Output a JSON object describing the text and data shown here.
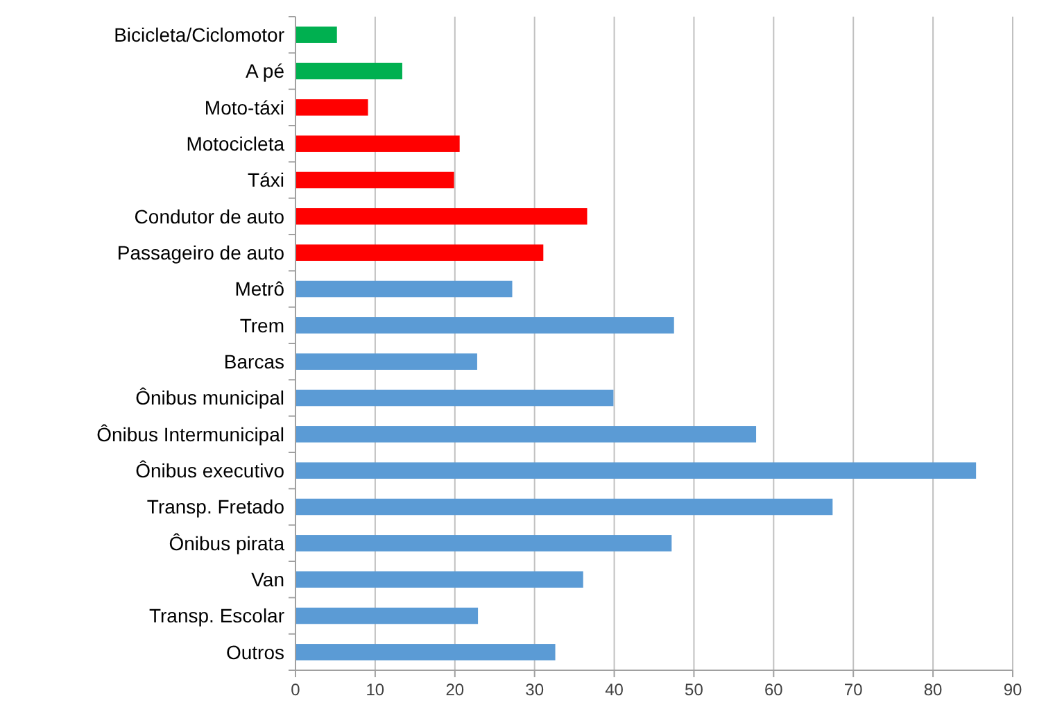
{
  "chart_data": {
    "type": "bar",
    "orientation": "horizontal",
    "categories": [
      "Bicicleta/Ciclomotor",
      "A pé",
      "Moto-táxi",
      "Motocicleta",
      "Táxi",
      "Condutor de auto",
      "Passageiro de auto",
      "Metrô",
      "Trem",
      "Barcas",
      "Ônibus municipal",
      "Ônibus Intermunicipal",
      "Ônibus executivo",
      "Transp. Fretado",
      "Ônibus pirata",
      "Van",
      "Transp. Escolar",
      "Outros"
    ],
    "values": [
      5.2,
      13.4,
      9.1,
      20.6,
      19.9,
      36.6,
      31.1,
      27.2,
      47.5,
      22.8,
      39.9,
      57.8,
      85.4,
      67.4,
      47.2,
      36.1,
      22.9,
      32.6
    ],
    "colors": [
      "#00b050",
      "#00b050",
      "#ff0000",
      "#ff0000",
      "#ff0000",
      "#ff0000",
      "#ff0000",
      "#5b9bd5",
      "#5b9bd5",
      "#5b9bd5",
      "#5b9bd5",
      "#5b9bd5",
      "#5b9bd5",
      "#5b9bd5",
      "#5b9bd5",
      "#5b9bd5",
      "#5b9bd5",
      "#5b9bd5"
    ],
    "xlim": [
      0,
      90
    ],
    "xticks": [
      0,
      10,
      20,
      30,
      40,
      50,
      60,
      70,
      80,
      90
    ],
    "grid": "x"
  }
}
